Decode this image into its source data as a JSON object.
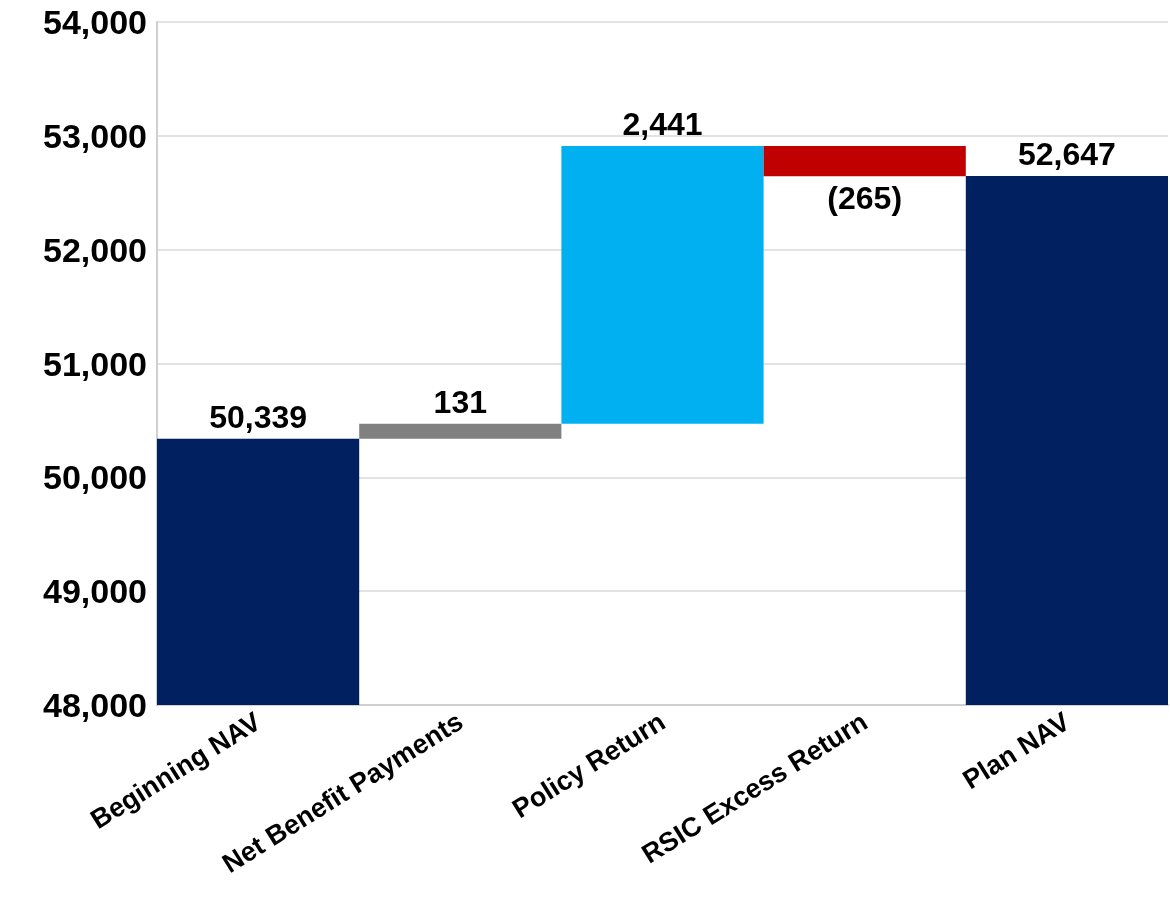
{
  "chart_data": {
    "type": "bar",
    "categories": [
      "Beginning NAV",
      "Net Benefit Payments",
      "Policy Return",
      "RSIC Excess Return",
      "Plan NAV"
    ],
    "values": [
      50339,
      131,
      2441,
      -265,
      52647
    ],
    "base": [
      null,
      50339,
      50470,
      52911,
      null
    ],
    "colors": [
      "#002060",
      "#808080",
      "#00b0f0",
      "#c00000",
      "#002060"
    ],
    "value_labels": [
      "50,339",
      "131",
      "2,441",
      "(265)",
      "52,647"
    ],
    "ylim": [
      48000,
      54000
    ],
    "yticks": [
      {
        "value": 48000,
        "label": "48,000"
      },
      {
        "value": 49000,
        "label": "49,000"
      },
      {
        "value": 50000,
        "label": "50,000"
      },
      {
        "value": 51000,
        "label": "51,000"
      },
      {
        "value": 52000,
        "label": "52,000"
      },
      {
        "value": 53000,
        "label": "53,000"
      },
      {
        "value": 54000,
        "label": "54,000"
      }
    ],
    "grid": "y"
  }
}
